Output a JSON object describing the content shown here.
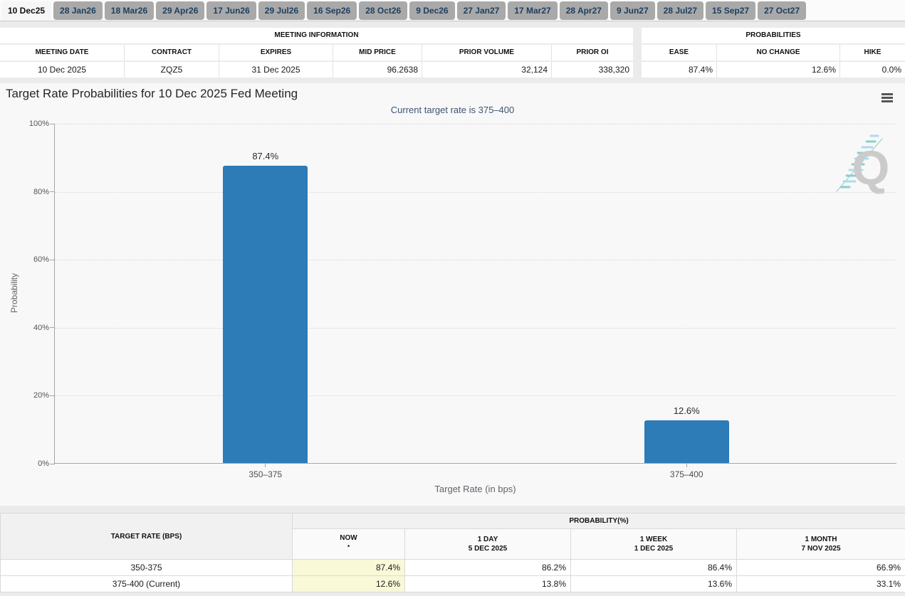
{
  "colors": {
    "bar": "#2d7cb8",
    "now_highlight": "#f9f9d8",
    "tab_selected_bg": "#f6f6f6",
    "tab_bg": "#a9a9a9",
    "tab_text": "#1d3e5f",
    "subtitle_text": "#3e5470"
  },
  "tabs": {
    "selected_index": 0,
    "items": [
      "10 Dec25",
      "28 Jan26",
      "18 Mar26",
      "29 Apr26",
      "17 Jun26",
      "29 Jul26",
      "16 Sep26",
      "28 Oct26",
      "9 Dec26",
      "27 Jan27",
      "17 Mar27",
      "28 Apr27",
      "9 Jun27",
      "28 Jul27",
      "15 Sep27",
      "27 Oct27"
    ]
  },
  "meeting_info": {
    "title": "MEETING INFORMATION",
    "columns": [
      "MEETING DATE",
      "CONTRACT",
      "EXPIRES",
      "MID PRICE",
      "PRIOR VOLUME",
      "PRIOR OI"
    ],
    "row": [
      "10 Dec 2025",
      "ZQZ5",
      "31 Dec 2025",
      "96.2638",
      "32,124",
      "338,320"
    ]
  },
  "probabilities": {
    "title": "PROBABILITIES",
    "columns": [
      "EASE",
      "NO CHANGE",
      "HIKE"
    ],
    "row": [
      "87.4%",
      "12.6%",
      "0.0%"
    ]
  },
  "chart": {
    "title": "Target Rate Probabilities for 10 Dec 2025 Fed Meeting",
    "subtitle": "Current target rate is 375–400",
    "menu_icon": "hamburger-menu-icon",
    "watermark_letter": "Q"
  },
  "chart_data": {
    "type": "bar",
    "title": "Target Rate Probabilities for 10 Dec 2025 Fed Meeting",
    "subtitle": "Current target rate is 375–400",
    "categories": [
      "350–375",
      "375–400"
    ],
    "values": [
      87.4,
      12.6
    ],
    "labels": [
      "87.4%",
      "12.6%"
    ],
    "xlabel": "Target Rate (in bps)",
    "ylabel": "Probability",
    "ylim": [
      0,
      100
    ],
    "yticks": [
      "0%",
      "20%",
      "40%",
      "60%",
      "80%",
      "100%"
    ],
    "grid": "dotted-horizontal",
    "legend": "none",
    "bar_color": "#2d7cb8"
  },
  "bottom_table": {
    "left_header": "TARGET RATE (BPS)",
    "group_header": "PROBABILITY(%)",
    "columns": [
      {
        "line1": "NOW",
        "sup": "*",
        "line2": ""
      },
      {
        "line1": "1 DAY",
        "line2": "5 DEC 2025"
      },
      {
        "line1": "1 WEEK",
        "line2": "1 DEC 2025"
      },
      {
        "line1": "1 MONTH",
        "line2": "7 NOV 2025"
      }
    ],
    "rows": [
      {
        "rate": "350-375",
        "values": [
          "87.4%",
          "86.2%",
          "86.4%",
          "66.9%"
        ]
      },
      {
        "rate": "375-400 (Current)",
        "values": [
          "12.6%",
          "13.8%",
          "13.6%",
          "33.1%"
        ]
      }
    ]
  }
}
